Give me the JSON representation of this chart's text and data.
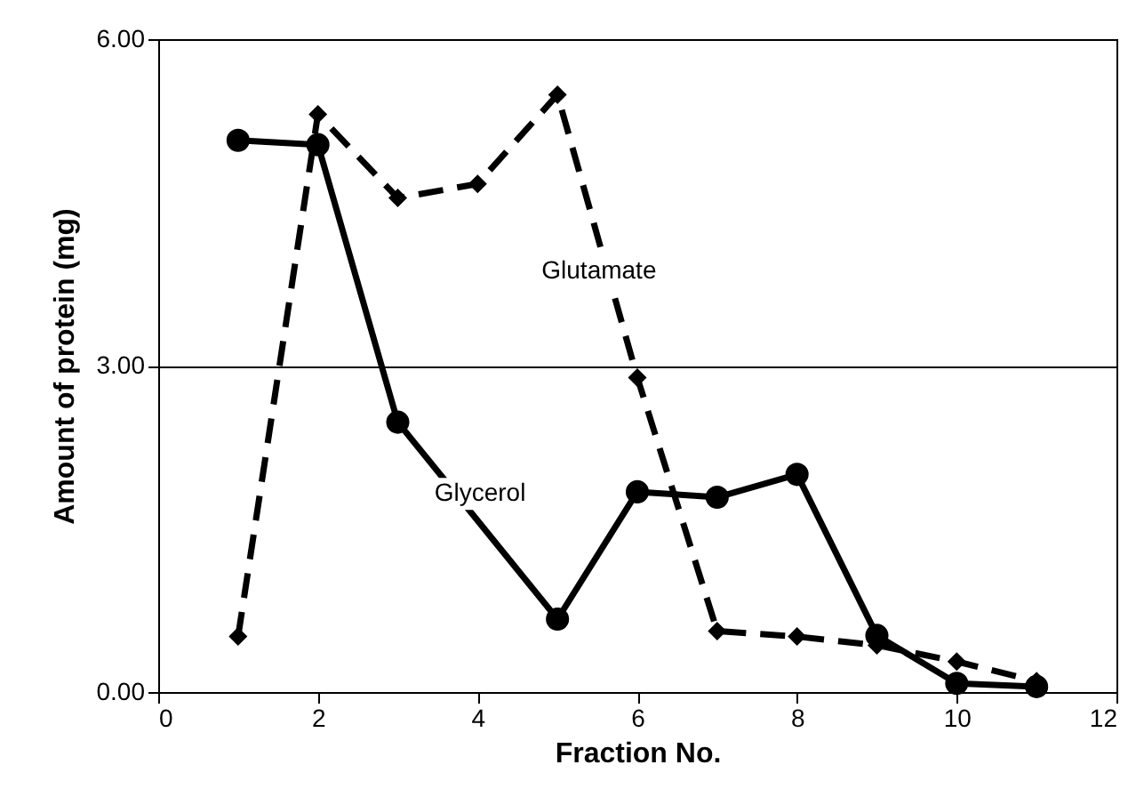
{
  "chart_data": {
    "type": "line",
    "xlabel": "Fraction No.",
    "ylabel": "Amount of protein (mg)",
    "xlim": [
      0,
      12
    ],
    "xticks": [
      0,
      2,
      4,
      6,
      8,
      10,
      12
    ],
    "ylim": [
      0,
      6
    ],
    "yticks": [
      {
        "value": 0,
        "label": "0.00"
      },
      {
        "value": 3,
        "label": "3.00"
      },
      {
        "value": 6,
        "label": "6.00"
      }
    ],
    "grid": "y",
    "x": [
      1,
      2,
      3,
      4,
      5,
      6,
      7,
      8,
      9,
      10,
      11
    ],
    "series": [
      {
        "name": "Glycerol",
        "color": "#000000",
        "marker": "circle",
        "line_style": "solid",
        "x": [
          1,
          2,
          3,
          5,
          6,
          7,
          8,
          9,
          10,
          11
        ],
        "values": [
          5.07,
          5.03,
          2.48,
          0.67,
          1.84,
          1.79,
          2.0,
          0.52,
          0.08,
          0.05
        ]
      },
      {
        "name": "Glutamate",
        "color": "#000000",
        "marker": "diamond",
        "line_style": "dashed",
        "values": [
          0.51,
          5.31,
          4.54,
          4.67,
          5.49,
          2.89,
          0.56,
          0.51,
          0.43,
          0.28,
          0.1
        ]
      }
    ]
  }
}
